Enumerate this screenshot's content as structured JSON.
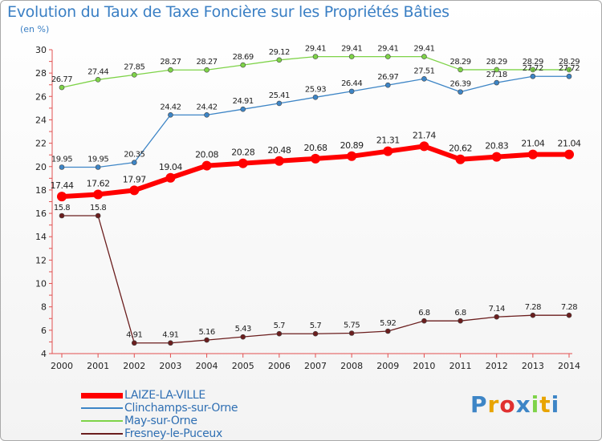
{
  "chart_data": {
    "type": "line",
    "title": "Evolution du Taux de Taxe Foncière sur les Propriétés Bâties",
    "subtitle": "(en %)",
    "x": [
      "2000",
      "2001",
      "2002",
      "2003",
      "2004",
      "2005",
      "2006",
      "2007",
      "2008",
      "2009",
      "2010",
      "2011",
      "2012",
      "2013",
      "2014"
    ],
    "ylim": [
      4,
      30
    ],
    "yticks": [
      4,
      6,
      8,
      10,
      12,
      14,
      16,
      18,
      20,
      22,
      24,
      26,
      28,
      30
    ],
    "grid": false,
    "legend_position": "bottom-left",
    "series": [
      {
        "name": "LAIZE-LA-VILLE",
        "color": "#ff0000",
        "values": [
          17.44,
          17.62,
          17.97,
          19.04,
          20.08,
          20.28,
          20.48,
          20.68,
          20.89,
          21.31,
          21.74,
          20.62,
          20.83,
          21.04,
          21.04
        ]
      },
      {
        "name": "Clinchamps-sur-Orne",
        "color": "#3d85c6",
        "values": [
          19.95,
          19.95,
          20.35,
          24.42,
          24.42,
          24.91,
          25.41,
          25.93,
          26.44,
          26.97,
          27.51,
          26.39,
          27.18,
          27.72,
          27.72
        ]
      },
      {
        "name": "May-sur-Orne",
        "color": "#7ed348",
        "values": [
          26.77,
          27.44,
          27.85,
          28.27,
          28.27,
          28.69,
          29.12,
          29.41,
          29.41,
          29.41,
          29.41,
          28.29,
          28.29,
          28.29,
          28.29
        ]
      },
      {
        "name": "Fresney-le-Puceux",
        "color": "#6b1e1e",
        "values": [
          15.8,
          15.8,
          4.91,
          4.91,
          5.16,
          5.43,
          5.7,
          5.7,
          5.75,
          5.92,
          6.8,
          6.8,
          7.14,
          7.28,
          7.28
        ]
      }
    ]
  },
  "brand": {
    "letters": [
      "P",
      "r",
      "o",
      "x",
      "i",
      "t",
      "i"
    ],
    "colors": [
      "#3d85c6",
      "#e8a400",
      "#e03030",
      "#3d85c6",
      "#7ed348",
      "#e8a400",
      "#3d85c6"
    ]
  }
}
